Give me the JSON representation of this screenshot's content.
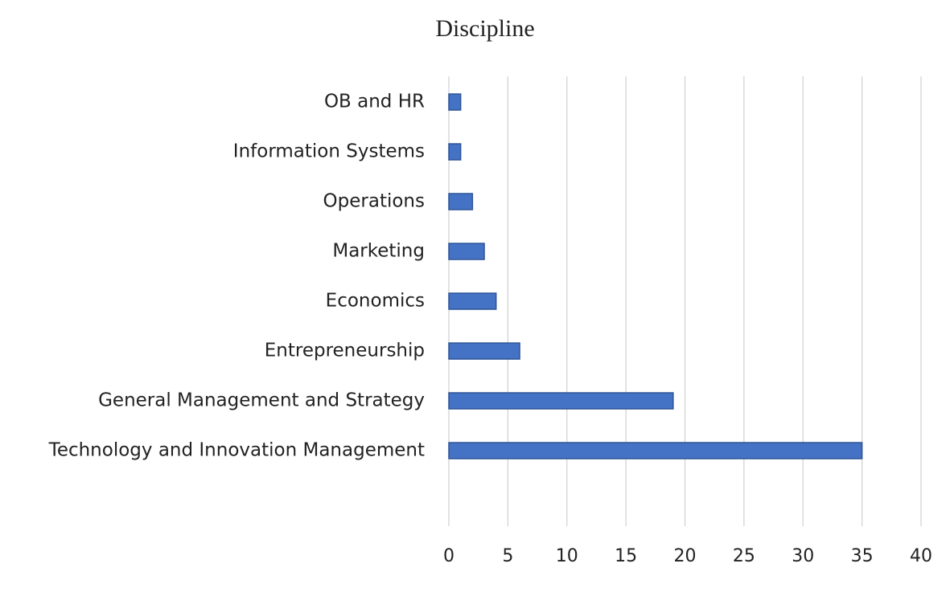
{
  "chart_data": {
    "type": "bar",
    "orientation": "horizontal",
    "title": "Discipline",
    "categories": [
      "OB and HR",
      "Information Systems",
      "Operations",
      "Marketing",
      "Economics",
      "Entrepreneurship",
      "General Management and Strategy",
      "Technology and Innovation Management"
    ],
    "values": [
      1,
      1,
      2,
      3,
      4,
      6,
      19,
      35
    ],
    "color": "#4472c4",
    "xlim": [
      0,
      40
    ],
    "xticks": [
      0,
      5,
      10,
      15,
      20,
      25,
      30,
      35,
      40
    ],
    "grid": true
  }
}
